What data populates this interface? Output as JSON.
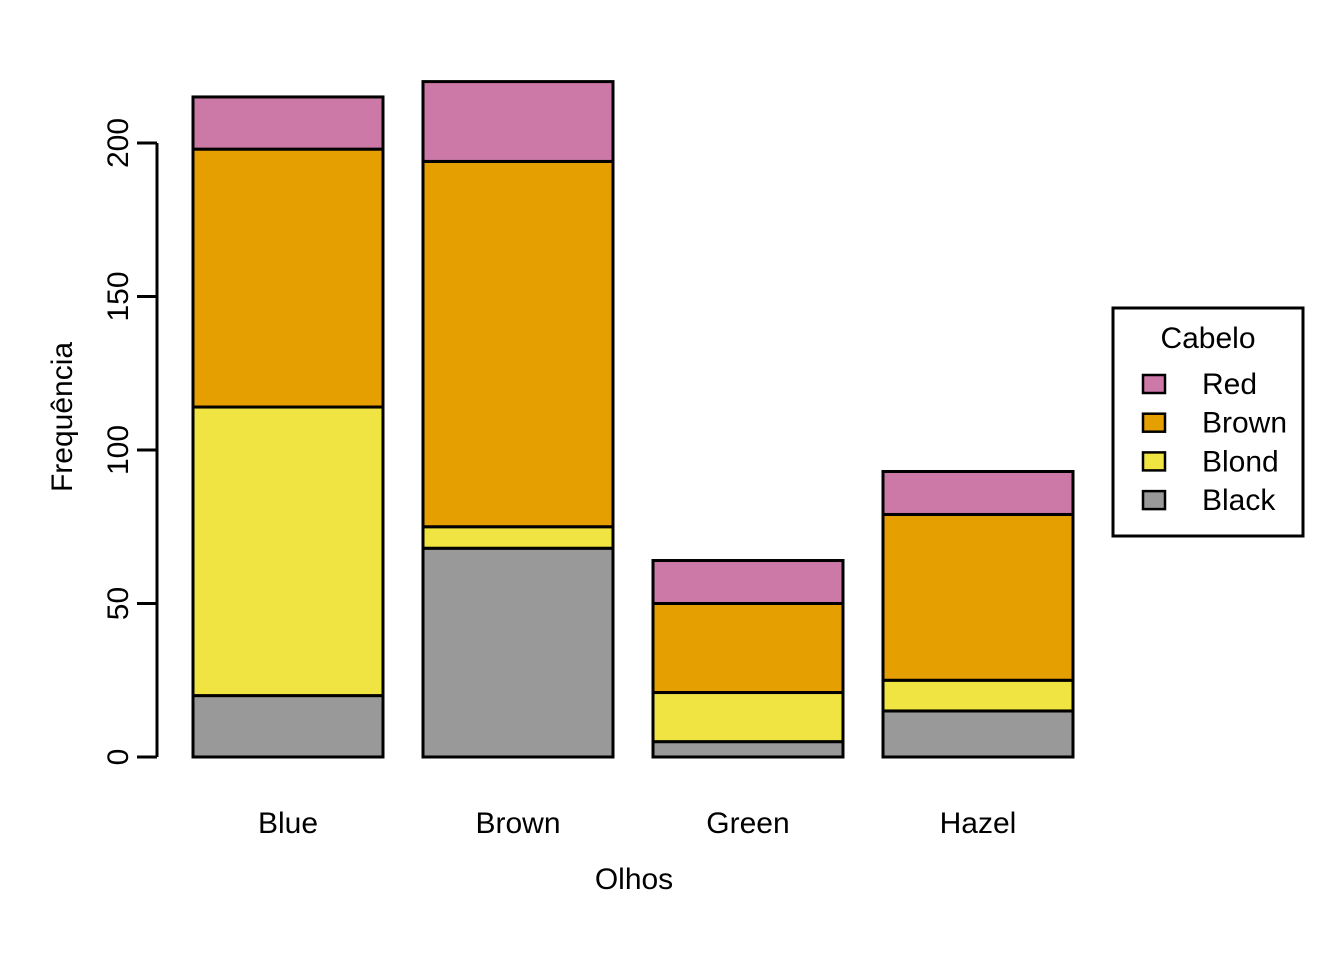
{
  "chart_data": {
    "type": "bar",
    "stacked": true,
    "xlabel": "Olhos",
    "ylabel": "Frequência",
    "categories": [
      "Blue",
      "Brown",
      "Green",
      "Hazel"
    ],
    "series": [
      {
        "name": "Black",
        "color": "#999999",
        "values": [
          20,
          68,
          5,
          15
        ]
      },
      {
        "name": "Blond",
        "color": "#F0E442",
        "values": [
          94,
          7,
          16,
          10
        ]
      },
      {
        "name": "Brown",
        "color": "#E69F00",
        "values": [
          84,
          119,
          29,
          54
        ]
      },
      {
        "name": "Red",
        "color": "#CC79A7",
        "values": [
          17,
          26,
          14,
          14
        ]
      }
    ],
    "totals": [
      215,
      220,
      64,
      93
    ],
    "yticks": [
      0,
      50,
      100,
      150,
      200
    ],
    "ylim": [
      0,
      200
    ],
    "grid": false,
    "bar_border_color": "#000000",
    "background_color": "#FFFFFF",
    "legend": {
      "title": "Cabelo",
      "position": "right",
      "entries": [
        {
          "label": "Red",
          "color": "#CC79A7"
        },
        {
          "label": "Brown",
          "color": "#E69F00"
        },
        {
          "label": "Blond",
          "color": "#F0E442"
        },
        {
          "label": "Black",
          "color": "#999999"
        }
      ]
    }
  }
}
